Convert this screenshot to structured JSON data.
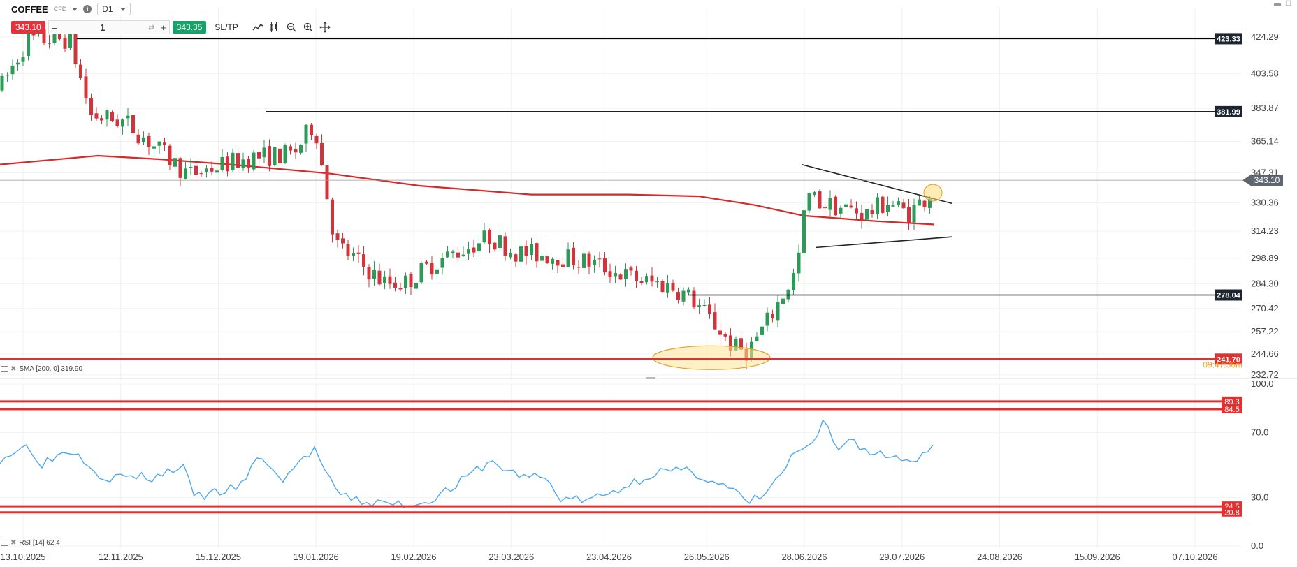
{
  "symbol": {
    "name": "COFFEE",
    "type": "CFD",
    "timeframe": "D1"
  },
  "trade": {
    "sell": "343.10",
    "buy": "343.35",
    "quantity": "1",
    "minus": "–",
    "plus": "+",
    "sltp": "SL/TP"
  },
  "chart_data": [
    {
      "type": "candlestick",
      "title": "",
      "y_ticks": [
        424.29,
        403.58,
        383.87,
        365.14,
        347.31,
        330.36,
        314.23,
        298.89,
        284.3,
        270.42,
        257.22,
        244.66,
        232.72
      ],
      "y_tick_labels": [
        "424.29",
        "403.58",
        "383.87",
        "365.14",
        "347.31",
        "330.36",
        "314.23",
        "298.89",
        "284.30",
        "270.42",
        "257.22",
        "244.66",
        "232.72"
      ],
      "x_tick_labels": [
        "13.10.2025",
        "12.11.2025",
        "15.12.2025",
        "19.01.2026",
        "19.02.2026",
        "23.03.2026",
        "23.04.2026",
        "26.05.2026",
        "28.06.2026",
        "29.07.2026",
        "24.08.2026",
        "15.09.2026",
        "07.10.2026"
      ],
      "current_price": {
        "value": 343.1,
        "label": "343.10"
      },
      "levels": [
        {
          "value": 423.33,
          "label": "423.33",
          "color": "#000000"
        },
        {
          "value": 381.99,
          "label": "381.99",
          "color": "#000000"
        },
        {
          "value": 278.04,
          "label": "278.04",
          "color": "#000000"
        },
        {
          "value": 241.7,
          "label": "241.70",
          "color": "#e03030"
        }
      ],
      "countdown": "09:47:36m",
      "sma": {
        "name": "SMA",
        "period": 200,
        "shift": 0,
        "value": 319.9,
        "label": "SMA [200, 0] 319.90",
        "color": "#d42a2a"
      },
      "colors": {
        "up": "#2e9a57",
        "down": "#d0353b",
        "sma": "#d42a2a"
      }
    },
    {
      "type": "line",
      "title": "",
      "indicator": "RSI",
      "label": "RSI [14] 62.4",
      "current_value": 62.4,
      "y_ticks": [
        100.0,
        70.0,
        30.0,
        0.0
      ],
      "y_tick_labels": [
        "100.0",
        "70.0",
        "30.0",
        "0.0"
      ],
      "ylim": [
        0,
        100
      ],
      "levels": [
        {
          "value": 89.3,
          "label": "89.3"
        },
        {
          "value": 84.5,
          "label": "84.5"
        },
        {
          "value": 24.5,
          "label": "24.5"
        },
        {
          "value": 20.8,
          "label": "20.8"
        }
      ],
      "color": "#4ea9ee"
    }
  ]
}
